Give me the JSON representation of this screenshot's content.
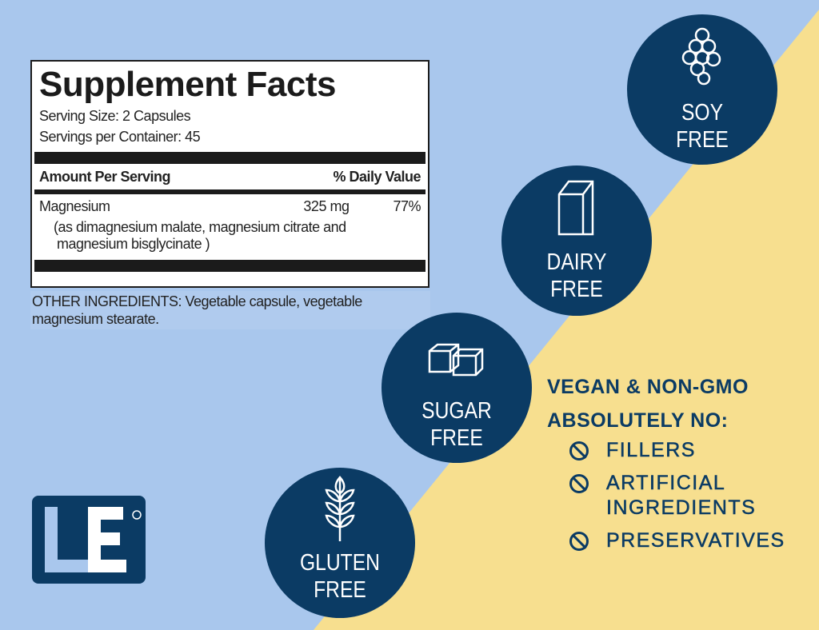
{
  "colors": {
    "background_blue": "#a9c7ed",
    "background_yellow": "#f7df8f",
    "navy": "#0b3b64"
  },
  "supplement_facts": {
    "title": "Supplement Facts",
    "serving_size": "Serving Size: 2 Capsules",
    "servings_per_container": "Servings per Container: 45",
    "amount_header": "Amount Per Serving",
    "dv_header": "% Daily Value",
    "rows": [
      {
        "name": "Magnesium",
        "amount": "325 mg",
        "dv": "77%",
        "note_1": "(as dimagnesium malate, magnesium citrate and",
        "note_2": "magnesium bisglycinate )"
      }
    ]
  },
  "other_ingredients_1": "OTHER INGREDIENTS: Vegetable capsule, vegetable",
  "other_ingredients_2": "magnesium stearate.",
  "badges": [
    {
      "icon": "soybean-icon",
      "line1": "SOY",
      "line2": "FREE"
    },
    {
      "icon": "milk-carton-icon",
      "line1": "DAIRY",
      "line2": "FREE"
    },
    {
      "icon": "sugar-cubes-icon",
      "line1": "SUGAR",
      "line2": "FREE"
    },
    {
      "icon": "wheat-icon",
      "line1": "GLUTEN",
      "line2": "FREE"
    }
  ],
  "claims": {
    "heading1": "VEGAN & NON-GMO",
    "heading2": "ABSOLUTELY NO:",
    "items": [
      {
        "line1": "FILLERS"
      },
      {
        "line1": "ARTIFICIAL",
        "line2": "INGREDIENTS"
      },
      {
        "line1": "PRESERVATIVES"
      }
    ]
  },
  "logo": {
    "text": "LE",
    "trademark": "TM"
  }
}
